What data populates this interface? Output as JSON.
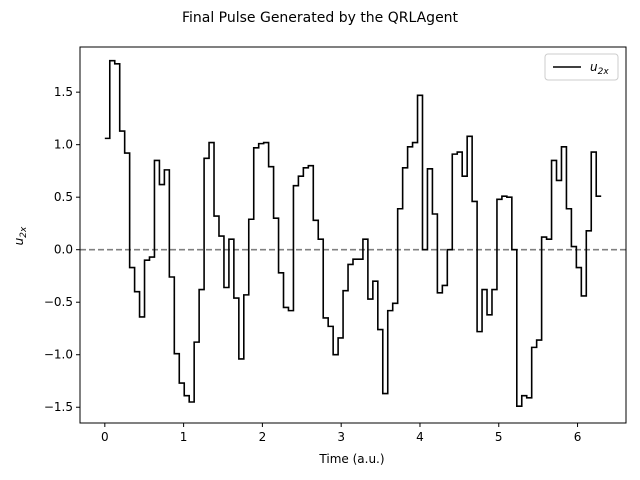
{
  "chart_data": {
    "type": "line",
    "step": "post",
    "title": "Final Pulse Generated by the QRLAgent",
    "xlabel": "Time (a.u.)",
    "ylabel_base": "u",
    "ylabel_sub": "2x",
    "xlim": [
      -0.315,
      6.615
    ],
    "ylim": [
      -1.65,
      1.93
    ],
    "xticks": [
      "0",
      "1",
      "2",
      "3",
      "4",
      "5",
      "6"
    ],
    "xtick_values": [
      0,
      1,
      2,
      3,
      4,
      5,
      6
    ],
    "yticks": [
      "−1.5",
      "−1.0",
      "−0.5",
      "0.0",
      "0.5",
      "1.0",
      "1.5"
    ],
    "ytick_values": [
      -1.5,
      -1.0,
      -0.5,
      0.0,
      0.5,
      1.0,
      1.5
    ],
    "reference_line": {
      "y": 0.0,
      "style": "dashed",
      "color": "#808080"
    },
    "legend": {
      "position": "upper right",
      "label_base": "u",
      "label_sub": "2x"
    },
    "series": [
      {
        "name": "u2x",
        "color": "#000000",
        "x": [
          0.0,
          0.063,
          0.126,
          0.189,
          0.252,
          0.315,
          0.378,
          0.441,
          0.504,
          0.567,
          0.63,
          0.693,
          0.756,
          0.819,
          0.882,
          0.945,
          1.008,
          1.071,
          1.134,
          1.197,
          1.26,
          1.323,
          1.386,
          1.449,
          1.512,
          1.575,
          1.638,
          1.701,
          1.764,
          1.827,
          1.89,
          1.953,
          2.016,
          2.079,
          2.142,
          2.205,
          2.268,
          2.331,
          2.394,
          2.457,
          2.52,
          2.583,
          2.646,
          2.709,
          2.772,
          2.835,
          2.898,
          2.961,
          3.024,
          3.087,
          3.15,
          3.213,
          3.276,
          3.339,
          3.402,
          3.465,
          3.528,
          3.591,
          3.654,
          3.717,
          3.78,
          3.843,
          3.906,
          3.969,
          4.032,
          4.095,
          4.158,
          4.221,
          4.284,
          4.347,
          4.41,
          4.473,
          4.536,
          4.599,
          4.662,
          4.725,
          4.788,
          4.851,
          4.914,
          4.977,
          5.04,
          5.103,
          5.166,
          5.229,
          5.292,
          5.355,
          5.418,
          5.481,
          5.544,
          5.607,
          5.67,
          5.733,
          5.796,
          5.859,
          5.922,
          5.985,
          6.048,
          6.111,
          6.174,
          6.237
        ],
        "y": [
          1.06,
          1.8,
          1.77,
          1.13,
          0.92,
          -0.17,
          -0.4,
          -0.64,
          -0.1,
          -0.07,
          0.85,
          0.62,
          0.76,
          -0.26,
          -0.99,
          -1.27,
          -1.39,
          -1.45,
          -0.88,
          -0.38,
          0.87,
          1.02,
          0.32,
          0.13,
          -0.36,
          0.1,
          -0.46,
          -1.04,
          -0.43,
          0.29,
          0.97,
          1.01,
          1.02,
          0.79,
          0.3,
          -0.22,
          -0.55,
          -0.58,
          0.61,
          0.7,
          0.78,
          0.8,
          0.28,
          0.1,
          -0.65,
          -0.73,
          -1.0,
          -0.84,
          -0.39,
          -0.14,
          -0.09,
          -0.09,
          0.1,
          -0.47,
          -0.3,
          -0.76,
          -1.37,
          -0.58,
          -0.51,
          0.39,
          0.78,
          0.98,
          1.02,
          1.47,
          0.0,
          0.77,
          0.34,
          -0.41,
          -0.34,
          0.0,
          0.91,
          0.93,
          0.7,
          1.08,
          0.46,
          -0.78,
          -0.38,
          -0.62,
          -0.38,
          0.48,
          0.51,
          0.5,
          0.0,
          -1.49,
          -1.39,
          -1.41,
          -0.93,
          -0.86,
          0.12,
          0.1,
          0.85,
          0.66,
          0.98,
          0.39,
          0.03,
          -0.17,
          -0.44,
          0.18,
          0.93,
          0.51
        ],
        "x_end": 6.3
      }
    ]
  }
}
